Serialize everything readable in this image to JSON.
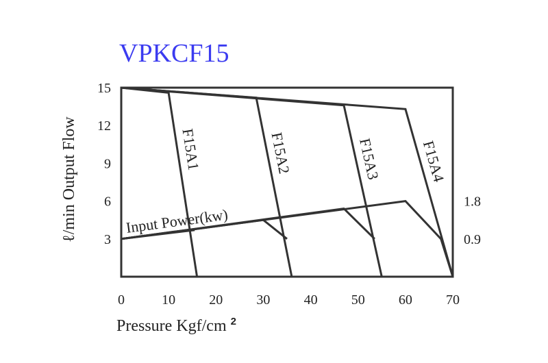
{
  "colors": {
    "title": "#3b3bf0",
    "ink": "#333333"
  },
  "chart_data": {
    "type": "line",
    "title": "VPKCF15",
    "xlabel": "Pressure Kgf/cm",
    "xlabel_superscript": "2",
    "ylabel": "ℓ/min Output Flow",
    "xlim": [
      0,
      70
    ],
    "ylim": [
      0,
      15
    ],
    "x_ticks": [
      0,
      10,
      20,
      30,
      40,
      50,
      60,
      70
    ],
    "y_ticks": [
      3,
      6,
      9,
      12,
      15
    ],
    "y2_ticks": [
      {
        "label": "0.9",
        "at_flow": 3
      },
      {
        "label": "1.8",
        "at_flow": 6
      }
    ],
    "grid": false,
    "flow_series": [
      {
        "name": "F15A1",
        "points": [
          [
            0,
            15
          ],
          [
            10,
            14.6
          ],
          [
            16,
            0
          ]
        ]
      },
      {
        "name": "F15A2",
        "points": [
          [
            0,
            15
          ],
          [
            28.5,
            14.2
          ],
          [
            36,
            0
          ]
        ]
      },
      {
        "name": "F15A3",
        "points": [
          [
            0,
            15
          ],
          [
            47,
            13.6
          ],
          [
            55,
            0
          ]
        ]
      },
      {
        "name": "F15A4",
        "points": [
          [
            0,
            15
          ],
          [
            60,
            13.3
          ],
          [
            70,
            0
          ]
        ]
      }
    ],
    "power_label": "Input Power(kw)",
    "power_series": [
      {
        "name": "F15A1",
        "points": [
          [
            0,
            3.0
          ],
          [
            15.5,
            3.7
          ]
        ]
      },
      {
        "name": "F15A2",
        "points": [
          [
            0,
            3.0
          ],
          [
            30,
            4.5
          ],
          [
            35,
            3.0
          ]
        ]
      },
      {
        "name": "F15A3",
        "points": [
          [
            0,
            3.0
          ],
          [
            47,
            5.4
          ],
          [
            53.5,
            3.0
          ]
        ]
      },
      {
        "name": "F15A4",
        "points": [
          [
            0,
            3.0
          ],
          [
            60,
            6.0
          ],
          [
            67.5,
            3.0
          ],
          [
            70,
            0
          ]
        ]
      }
    ]
  }
}
